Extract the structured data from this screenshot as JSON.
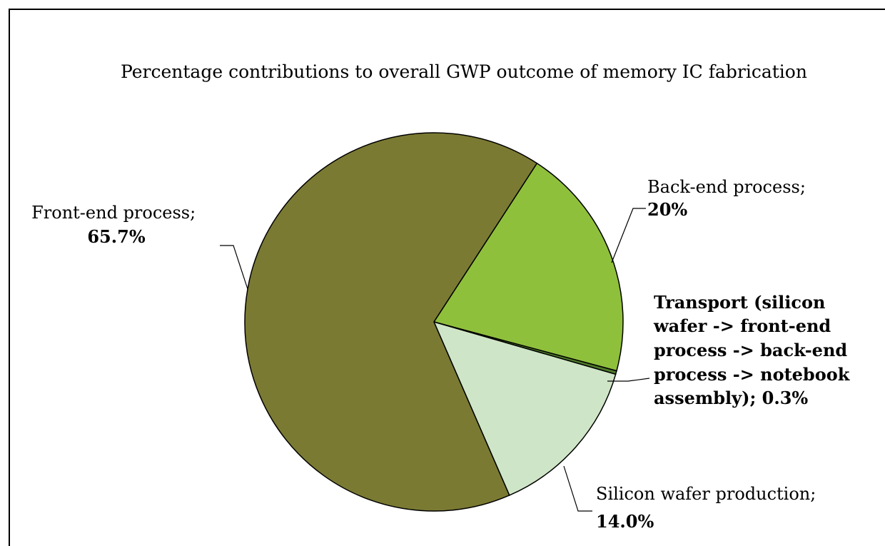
{
  "chart_data": {
    "type": "pie",
    "title": "Percentage contributions to overall GWP outcome of memory IC fabrication",
    "slices": [
      {
        "category": "Back-end process",
        "value": 20.0,
        "value_label": "20%",
        "color": "#8FC03C"
      },
      {
        "category": "Transport (silicon wafer -> front-end process -> back-end process -> notebook assembly)",
        "value": 0.3,
        "value_label": "0.3%",
        "color": "#4E7A2A"
      },
      {
        "category": "Silicon wafer production",
        "value": 14.0,
        "value_label": "14.0%",
        "color": "#CFE5C7"
      },
      {
        "category": "Front-end process",
        "value": 65.7,
        "value_label": "65.7%",
        "color": "#7A7A33"
      }
    ],
    "labels": {
      "back_end": [
        "Back-end process;",
        "20%"
      ],
      "transport": [
        "Transport (silicon",
        "wafer -> front-end",
        "process -> back-end",
        "process -> notebook",
        "assembly); 0.3%"
      ],
      "silicon": [
        "Silicon wafer production;",
        "14.0%"
      ],
      "front_end": [
        "Front-end process;",
        "65.7%"
      ]
    },
    "start_angle_deg": 33,
    "direction": "clockwise",
    "legend": "none"
  }
}
